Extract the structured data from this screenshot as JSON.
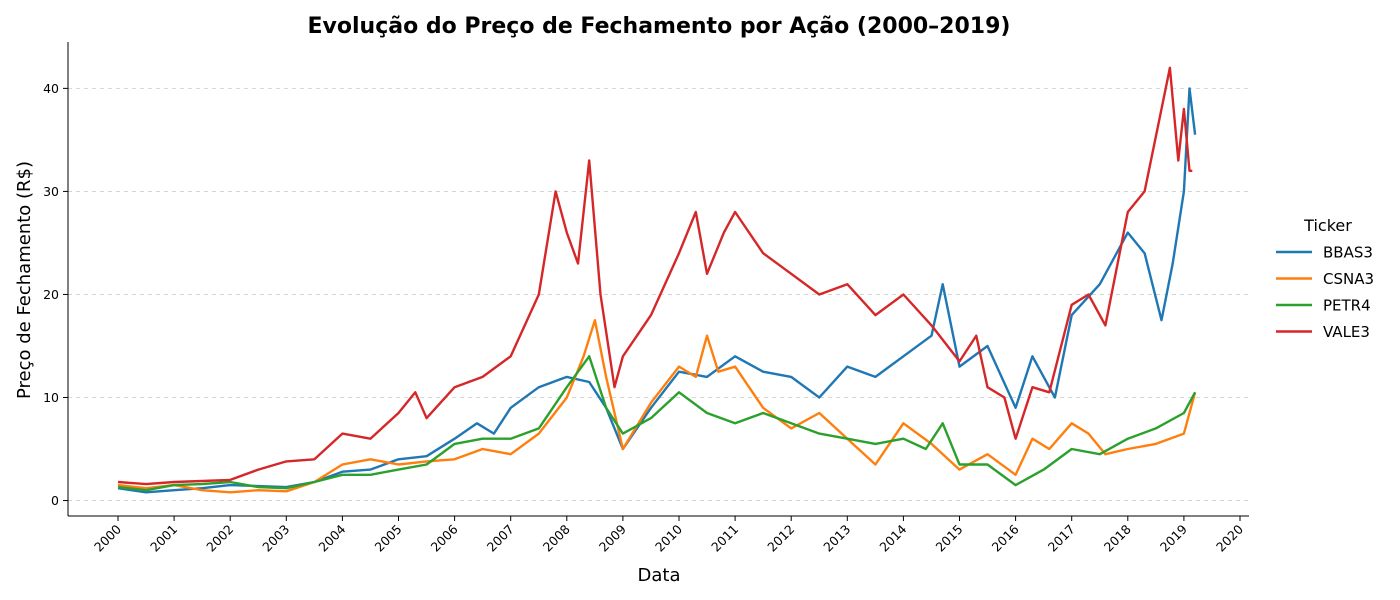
{
  "chart_data": {
    "type": "line",
    "title": "Evolução do Preço de Fechamento por Ação (2000–2019)",
    "xlabel": "Data",
    "ylabel": "Preço de Fechamento (R$)",
    "xlim": [
      2000,
      2020
    ],
    "ylim": [
      -1.5,
      44.5
    ],
    "x_ticks": [
      2000,
      2001,
      2002,
      2003,
      2004,
      2005,
      2006,
      2007,
      2008,
      2009,
      2010,
      2011,
      2012,
      2013,
      2014,
      2015,
      2016,
      2017,
      2018,
      2019,
      2020
    ],
    "x_tick_labels": [
      "2000",
      "2001",
      "2002",
      "2003",
      "2004",
      "2005",
      "2006",
      "2007",
      "2008",
      "2009",
      "2010",
      "2011",
      "2012",
      "2013",
      "2014",
      "2015",
      "2016",
      "2017",
      "2018",
      "2019",
      "2020"
    ],
    "y_ticks": [
      0,
      10,
      20,
      30,
      40
    ],
    "y_tick_labels": [
      "0",
      "10",
      "20",
      "30",
      "40"
    ],
    "grid": "horizontal dashed",
    "legend": {
      "title": "Ticker",
      "placement": "right, outside plot"
    },
    "series": [
      {
        "name": "BBAS3",
        "color": "#1f77b4",
        "x": [
          2000.0,
          2000.5,
          2001.0,
          2001.5,
          2002.0,
          2002.5,
          2003.0,
          2003.5,
          2004.0,
          2004.5,
          2005.0,
          2005.5,
          2006.0,
          2006.4,
          2006.7,
          2007.0,
          2007.5,
          2008.0,
          2008.4,
          2008.7,
          2009.0,
          2009.5,
          2010.0,
          2010.5,
          2011.0,
          2011.5,
          2012.0,
          2012.5,
          2013.0,
          2013.5,
          2014.0,
          2014.5,
          2014.7,
          2015.0,
          2015.5,
          2016.0,
          2016.3,
          2016.7,
          2017.0,
          2017.5,
          2018.0,
          2018.3,
          2018.6,
          2018.8,
          2019.0,
          2019.1,
          2019.2
        ],
        "y": [
          1.2,
          0.8,
          1.0,
          1.2,
          1.5,
          1.4,
          1.3,
          1.8,
          2.8,
          3.0,
          4.0,
          4.3,
          6.0,
          7.5,
          6.5,
          9.0,
          11.0,
          12.0,
          11.5,
          9.0,
          5.0,
          9.0,
          12.5,
          12.0,
          14.0,
          12.5,
          12.0,
          10.0,
          13.0,
          12.0,
          14.0,
          16.0,
          21.0,
          13.0,
          15.0,
          9.0,
          14.0,
          10.0,
          18.0,
          21.0,
          26.0,
          24.0,
          17.5,
          23.0,
          30.0,
          40.0,
          35.5
        ]
      },
      {
        "name": "CSNA3",
        "color": "#ff7f0e",
        "x": [
          2000.0,
          2000.5,
          2001.0,
          2001.5,
          2002.0,
          2002.5,
          2003.0,
          2003.5,
          2004.0,
          2004.5,
          2005.0,
          2005.5,
          2006.0,
          2006.5,
          2007.0,
          2007.5,
          2008.0,
          2008.3,
          2008.5,
          2008.7,
          2009.0,
          2009.5,
          2010.0,
          2010.3,
          2010.5,
          2010.7,
          2011.0,
          2011.5,
          2012.0,
          2012.5,
          2013.0,
          2013.5,
          2014.0,
          2014.5,
          2015.0,
          2015.5,
          2016.0,
          2016.3,
          2016.6,
          2017.0,
          2017.3,
          2017.6,
          2018.0,
          2018.5,
          2019.0,
          2019.2
        ],
        "y": [
          1.5,
          1.2,
          1.5,
          1.0,
          0.8,
          1.0,
          0.9,
          1.8,
          3.5,
          4.0,
          3.5,
          3.8,
          4.0,
          5.0,
          4.5,
          6.5,
          10.0,
          14.0,
          17.5,
          12.0,
          5.0,
          9.5,
          13.0,
          12.0,
          16.0,
          12.5,
          13.0,
          9.0,
          7.0,
          8.5,
          6.0,
          3.5,
          7.5,
          5.5,
          3.0,
          4.5,
          2.5,
          6.0,
          5.0,
          7.5,
          6.5,
          4.5,
          5.0,
          5.5,
          6.5,
          10.5
        ]
      },
      {
        "name": "PETR4",
        "color": "#2ca02c",
        "x": [
          2000.0,
          2000.5,
          2001.0,
          2001.5,
          2002.0,
          2002.5,
          2003.0,
          2003.5,
          2004.0,
          2004.5,
          2005.0,
          2005.5,
          2006.0,
          2006.5,
          2007.0,
          2007.5,
          2008.0,
          2008.4,
          2008.7,
          2009.0,
          2009.5,
          2010.0,
          2010.5,
          2011.0,
          2011.5,
          2012.0,
          2012.5,
          2013.0,
          2013.5,
          2014.0,
          2014.4,
          2014.7,
          2015.0,
          2015.5,
          2016.0,
          2016.5,
          2017.0,
          2017.5,
          2018.0,
          2018.5,
          2019.0,
          2019.2
        ],
        "y": [
          1.3,
          1.0,
          1.5,
          1.6,
          1.8,
          1.3,
          1.2,
          1.8,
          2.5,
          2.5,
          3.0,
          3.5,
          5.5,
          6.0,
          6.0,
          7.0,
          11.0,
          14.0,
          9.0,
          6.5,
          8.0,
          10.5,
          8.5,
          7.5,
          8.5,
          7.5,
          6.5,
          6.0,
          5.5,
          6.0,
          5.0,
          7.5,
          3.5,
          3.5,
          1.5,
          3.0,
          5.0,
          4.5,
          6.0,
          7.0,
          8.5,
          10.5
        ]
      },
      {
        "name": "VALE3",
        "color": "#d62728",
        "x": [
          2000.0,
          2000.5,
          2001.0,
          2001.5,
          2002.0,
          2002.5,
          2003.0,
          2003.5,
          2004.0,
          2004.5,
          2005.0,
          2005.3,
          2005.5,
          2006.0,
          2006.5,
          2007.0,
          2007.5,
          2007.8,
          2008.0,
          2008.2,
          2008.4,
          2008.6,
          2008.85,
          2009.0,
          2009.5,
          2010.0,
          2010.3,
          2010.5,
          2010.8,
          2011.0,
          2011.5,
          2012.0,
          2012.5,
          2013.0,
          2013.5,
          2014.0,
          2014.5,
          2015.0,
          2015.3,
          2015.5,
          2015.8,
          2016.0,
          2016.3,
          2016.6,
          2017.0,
          2017.3,
          2017.6,
          2018.0,
          2018.3,
          2018.6,
          2018.75,
          2018.9,
          2019.0,
          2019.1,
          2019.15
        ],
        "y": [
          1.8,
          1.6,
          1.8,
          1.9,
          2.0,
          3.0,
          3.8,
          4.0,
          6.5,
          6.0,
          8.5,
          10.5,
          8.0,
          11.0,
          12.0,
          14.0,
          20.0,
          30.0,
          26.0,
          23.0,
          33.0,
          20.0,
          11.0,
          14.0,
          18.0,
          24.0,
          28.0,
          22.0,
          26.0,
          28.0,
          24.0,
          22.0,
          20.0,
          21.0,
          18.0,
          20.0,
          17.0,
          13.5,
          16.0,
          11.0,
          10.0,
          6.0,
          11.0,
          10.5,
          19.0,
          20.0,
          17.0,
          28.0,
          30.0,
          38.0,
          42.0,
          33.0,
          38.0,
          32.0,
          32.0
        ]
      }
    ]
  }
}
